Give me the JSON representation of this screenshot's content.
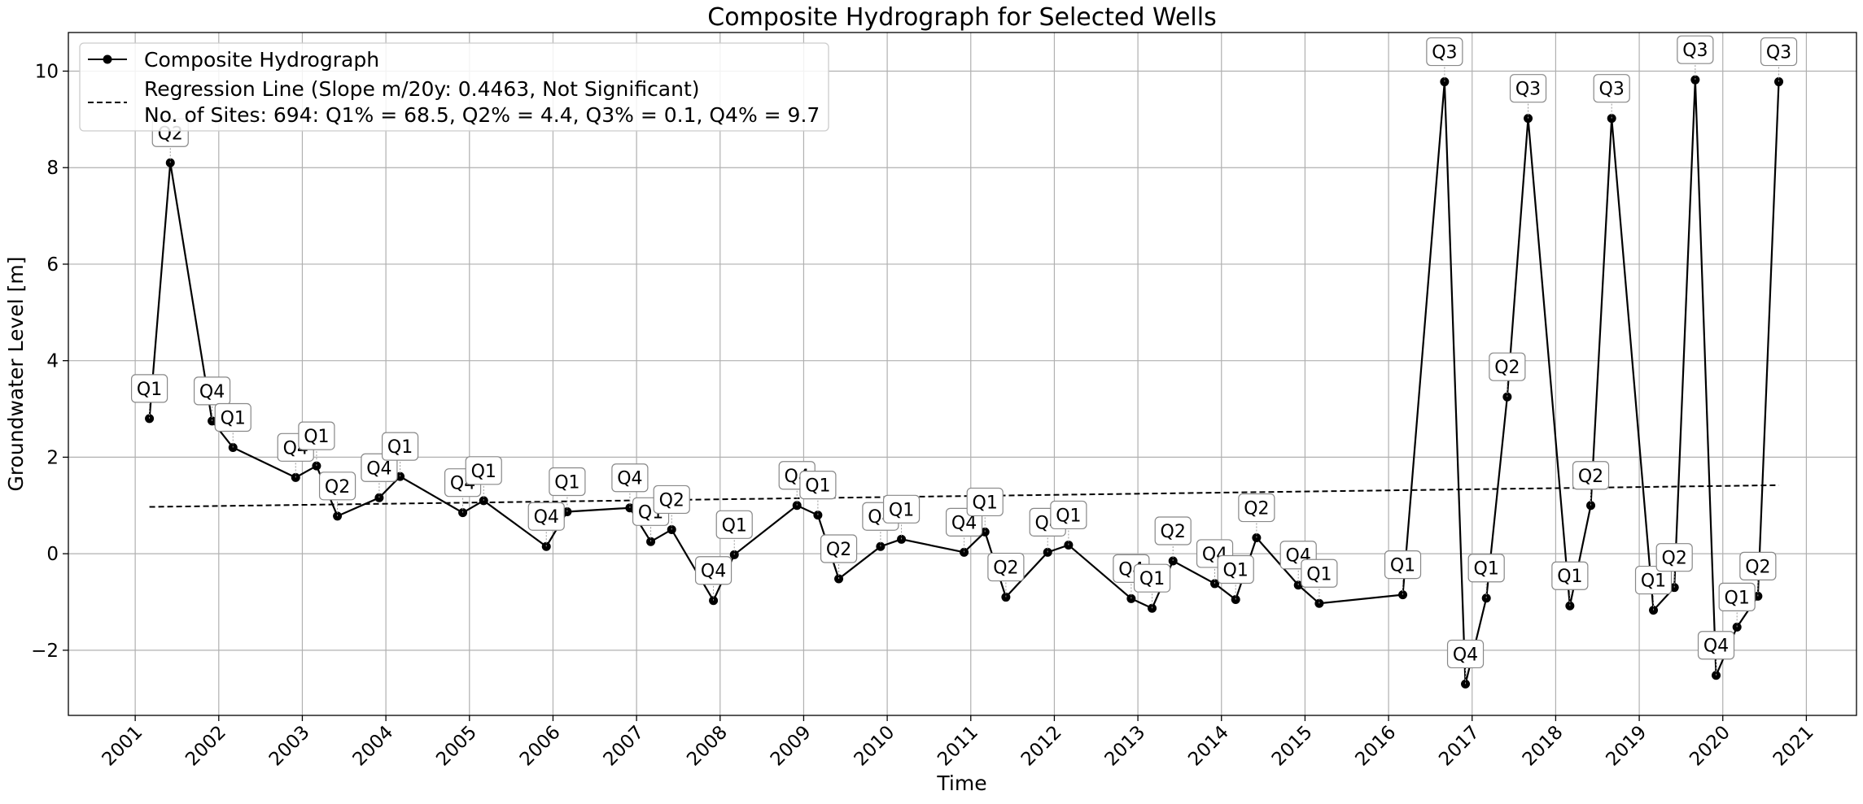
{
  "chart_data": {
    "type": "line",
    "title": "Composite Hydrograph for Selected Wells",
    "xlabel": "Time",
    "ylabel": "Groundwater Level [m]",
    "xlim": [
      2000.2,
      2021.6
    ],
    "ylim": [
      -3.35,
      10.8
    ],
    "x_ticks": [
      "2001",
      "2002",
      "2003",
      "2004",
      "2005",
      "2006",
      "2007",
      "2008",
      "2009",
      "2010",
      "2011",
      "2012",
      "2013",
      "2014",
      "2015",
      "2016",
      "2017",
      "2018",
      "2019",
      "2020",
      "2021"
    ],
    "y_ticks": [
      -2,
      0,
      2,
      4,
      6,
      8,
      10
    ],
    "y_tick_labels": [
      "−2",
      "0",
      "2",
      "4",
      "6",
      "8",
      "10"
    ],
    "grid": true,
    "legend_position": "top-left",
    "legend": {
      "series_label": "Composite Hydrograph",
      "regression_label": "Regression Line (Slope m/20y: 0.4463, Not Significant)",
      "sites_text": "No. of Sites: 694: Q1% = 68.5, Q2% = 4.4, Q3% = 0.1, Q4% = 9.7"
    },
    "series": [
      {
        "name": "Composite Hydrograph",
        "color": "#000000",
        "points": [
          {
            "x": 2001.17,
            "y": 2.8,
            "q": "Q1"
          },
          {
            "x": 2001.42,
            "y": 8.1,
            "q": "Q2"
          },
          {
            "x": 2001.92,
            "y": 2.75,
            "q": "Q4"
          },
          {
            "x": 2002.17,
            "y": 2.2,
            "q": "Q1"
          },
          {
            "x": 2002.92,
            "y": 1.58,
            "q": "Q4"
          },
          {
            "x": 2003.17,
            "y": 1.82,
            "q": "Q1"
          },
          {
            "x": 2003.42,
            "y": 0.78,
            "q": "Q2"
          },
          {
            "x": 2003.92,
            "y": 1.16,
            "q": "Q4"
          },
          {
            "x": 2004.17,
            "y": 1.6,
            "q": "Q1"
          },
          {
            "x": 2004.92,
            "y": 0.85,
            "q": "Q4"
          },
          {
            "x": 2005.17,
            "y": 1.1,
            "q": "Q1"
          },
          {
            "x": 2005.92,
            "y": 0.15,
            "q": "Q4"
          },
          {
            "x": 2006.17,
            "y": 0.87,
            "q": "Q1"
          },
          {
            "x": 2006.92,
            "y": 0.95,
            "q": "Q4"
          },
          {
            "x": 2007.17,
            "y": 0.25,
            "q": "Q1"
          },
          {
            "x": 2007.42,
            "y": 0.5,
            "q": "Q2"
          },
          {
            "x": 2007.92,
            "y": -0.97,
            "q": "Q4"
          },
          {
            "x": 2008.17,
            "y": -0.02,
            "q": "Q1"
          },
          {
            "x": 2008.92,
            "y": 1.0,
            "q": "Q4"
          },
          {
            "x": 2009.17,
            "y": 0.8,
            "q": "Q1"
          },
          {
            "x": 2009.42,
            "y": -0.52,
            "q": "Q2"
          },
          {
            "x": 2009.92,
            "y": 0.15,
            "q": "Q4"
          },
          {
            "x": 2010.17,
            "y": 0.3,
            "q": "Q1"
          },
          {
            "x": 2010.92,
            "y": 0.03,
            "q": "Q4"
          },
          {
            "x": 2011.17,
            "y": 0.45,
            "q": "Q1"
          },
          {
            "x": 2011.42,
            "y": -0.9,
            "q": "Q2"
          },
          {
            "x": 2011.92,
            "y": 0.03,
            "q": "Q4"
          },
          {
            "x": 2012.17,
            "y": 0.18,
            "q": "Q1"
          },
          {
            "x": 2012.92,
            "y": -0.93,
            "q": "Q4"
          },
          {
            "x": 2013.17,
            "y": -1.13,
            "q": "Q1"
          },
          {
            "x": 2013.42,
            "y": -0.15,
            "q": "Q2"
          },
          {
            "x": 2013.92,
            "y": -0.62,
            "q": "Q4"
          },
          {
            "x": 2014.17,
            "y": -0.95,
            "q": "Q1"
          },
          {
            "x": 2014.42,
            "y": 0.33,
            "q": "Q2"
          },
          {
            "x": 2014.92,
            "y": -0.65,
            "q": "Q4"
          },
          {
            "x": 2015.17,
            "y": -1.03,
            "q": "Q1"
          },
          {
            "x": 2016.17,
            "y": -0.85,
            "q": "Q1"
          },
          {
            "x": 2016.67,
            "y": 9.78,
            "q": "Q3"
          },
          {
            "x": 2016.92,
            "y": -2.7,
            "q": "Q4"
          },
          {
            "x": 2017.17,
            "y": -0.92,
            "q": "Q1"
          },
          {
            "x": 2017.42,
            "y": 3.25,
            "q": "Q2"
          },
          {
            "x": 2017.67,
            "y": 9.02,
            "q": "Q3"
          },
          {
            "x": 2018.17,
            "y": -1.08,
            "q": "Q1"
          },
          {
            "x": 2018.42,
            "y": 1.0,
            "q": "Q2"
          },
          {
            "x": 2018.67,
            "y": 9.02,
            "q": "Q3"
          },
          {
            "x": 2019.17,
            "y": -1.17,
            "q": "Q1"
          },
          {
            "x": 2019.42,
            "y": -0.7,
            "q": "Q2"
          },
          {
            "x": 2019.67,
            "y": 9.82,
            "q": "Q3"
          },
          {
            "x": 2019.92,
            "y": -2.52,
            "q": "Q4"
          },
          {
            "x": 2020.17,
            "y": -1.52,
            "q": "Q1"
          },
          {
            "x": 2020.42,
            "y": -0.88,
            "q": "Q2"
          },
          {
            "x": 2020.67,
            "y": 9.78,
            "q": "Q3"
          }
        ]
      },
      {
        "name": "Regression Line (Slope m/20y: 0.4463, Not Significant)",
        "style": "dashed",
        "color": "#000000",
        "points": [
          {
            "x": 2001.17,
            "y": 0.97
          },
          {
            "x": 2020.67,
            "y": 1.42
          }
        ]
      }
    ]
  }
}
